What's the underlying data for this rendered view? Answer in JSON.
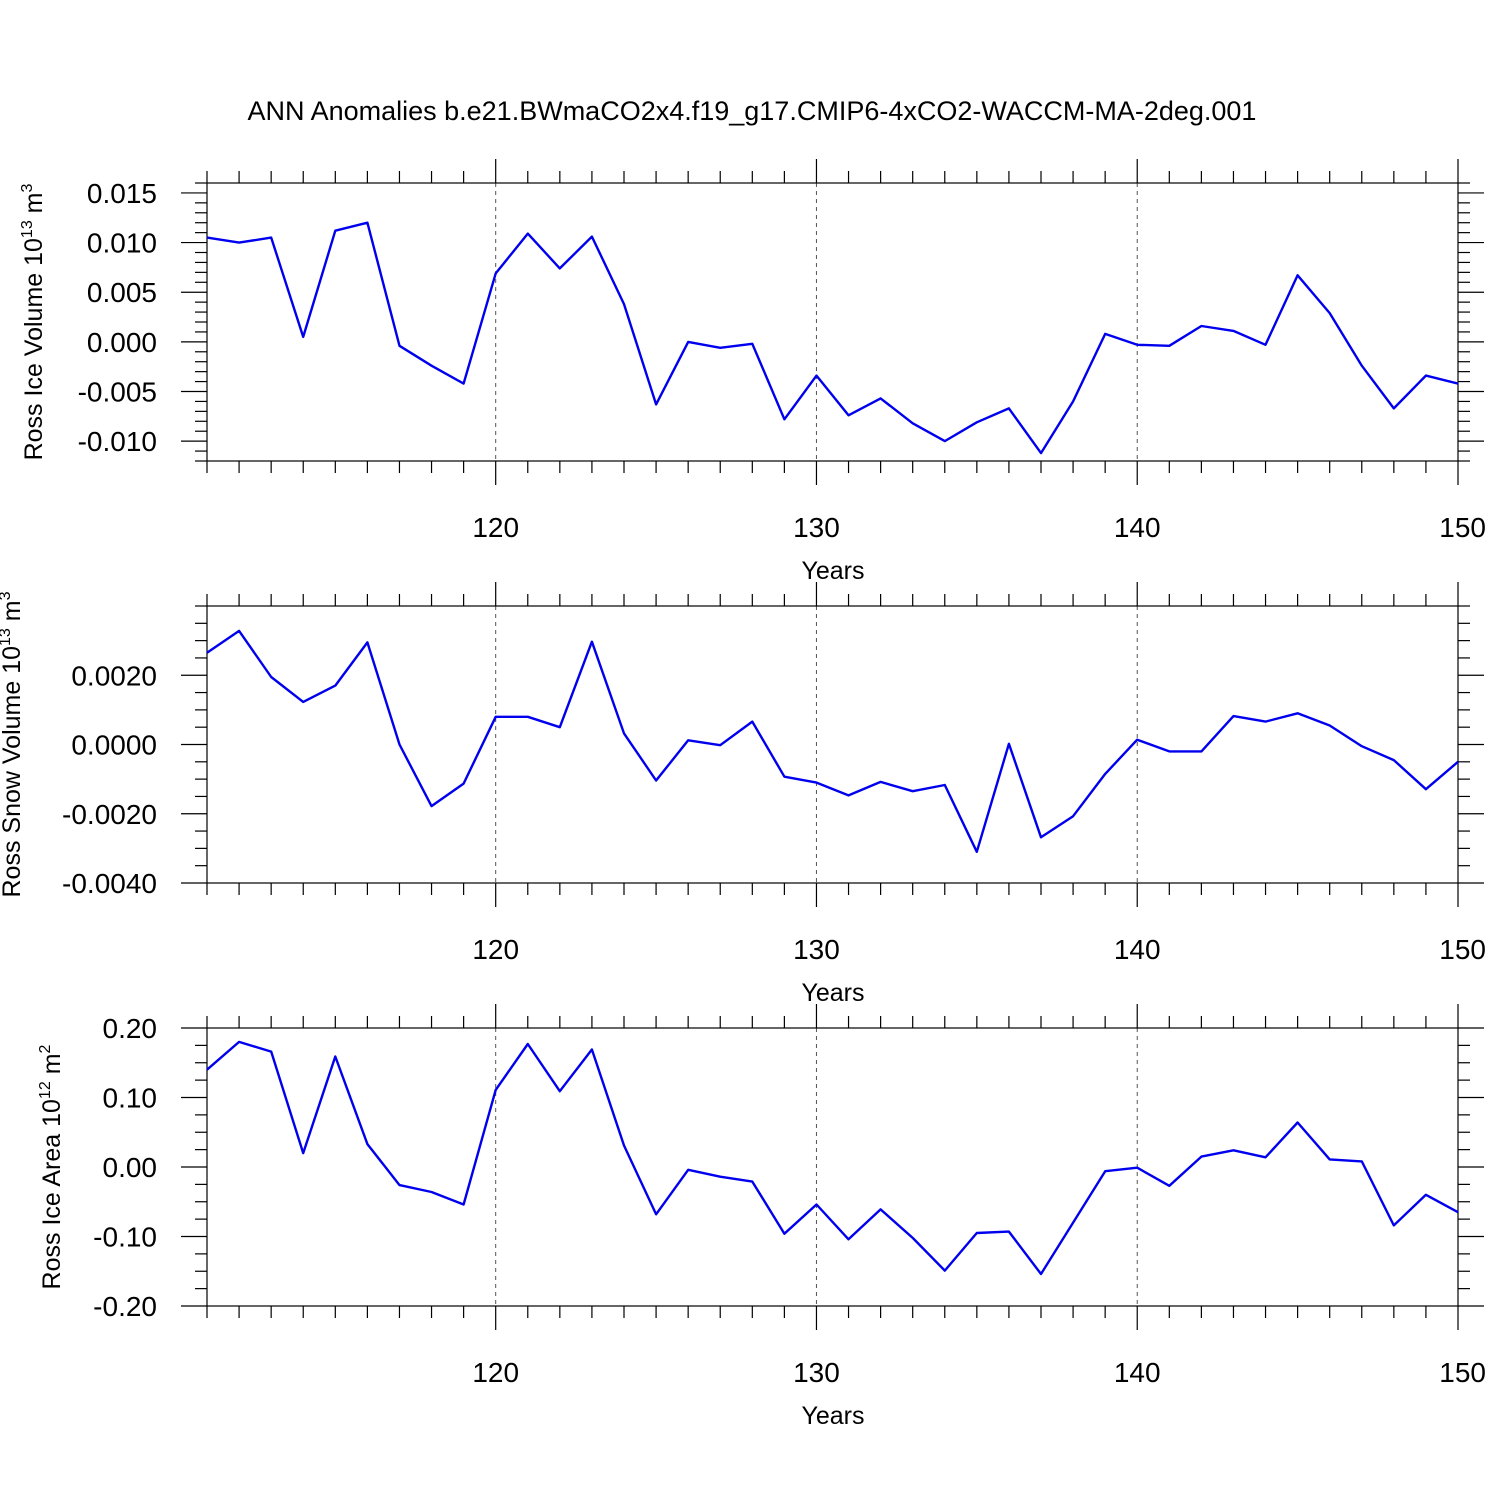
{
  "title": "ANN Anomalies b.e21.BWmaCO2x4.f19_g17.CMIP6-4xCO2-WACCM-MA-2deg.001",
  "chart_data": [
    {
      "type": "line",
      "ylabel_main": "Ross Ice Volume 10",
      "ylabel_exp": "13",
      "ylabel_unit": " m",
      "ylabel_unit_exp": "3",
      "xlabel": "Years",
      "xlim": [
        111,
        150
      ],
      "ylim": [
        -0.012,
        0.016
      ],
      "x_ticks": [
        120,
        130,
        140,
        150
      ],
      "x_tick_labels": [
        "120",
        "130",
        "140",
        "150"
      ],
      "y_ticks": [
        -0.01,
        -0.005,
        0.0,
        0.005,
        0.01,
        0.015
      ],
      "y_tick_labels": [
        "-0.010",
        "-0.005",
        "0.000",
        "0.005",
        "0.010",
        "0.015"
      ],
      "y_minor_step": 0.001,
      "grid_x": [
        120,
        130,
        140
      ],
      "x": [
        111,
        112,
        113,
        114,
        115,
        116,
        117,
        118,
        119,
        120,
        121,
        122,
        123,
        124,
        125,
        126,
        127,
        128,
        129,
        130,
        131,
        132,
        133,
        134,
        135,
        136,
        137,
        138,
        139,
        140,
        141,
        142,
        143,
        144,
        145,
        146,
        147,
        148,
        149,
        150
      ],
      "values": [
        0.0105,
        0.01,
        0.0105,
        0.0005,
        0.0112,
        0.012,
        -0.0004,
        -0.0024,
        -0.0042,
        0.0069,
        0.0109,
        0.0074,
        0.0106,
        0.0038,
        -0.0063,
        0.0,
        -0.0006,
        -0.0002,
        -0.0078,
        -0.0034,
        -0.0074,
        -0.0057,
        -0.0082,
        -0.01,
        -0.0081,
        -0.0067,
        -0.0112,
        -0.006,
        0.0008,
        -0.0003,
        -0.0004,
        0.0016,
        0.0011,
        -0.0003,
        0.0067,
        0.0029,
        -0.0024,
        -0.0067,
        -0.0034,
        -0.0042
      ],
      "color": "#0000ee"
    },
    {
      "type": "line",
      "ylabel_main": "Ross Snow Volume 10",
      "ylabel_exp": "13",
      "ylabel_unit": " m",
      "ylabel_unit_exp": "3",
      "xlabel": "Years",
      "xlim": [
        111,
        150
      ],
      "ylim": [
        -0.004,
        0.004
      ],
      "x_ticks": [
        120,
        130,
        140,
        150
      ],
      "x_tick_labels": [
        "120",
        "130",
        "140",
        "150"
      ],
      "y_ticks": [
        -0.004,
        -0.002,
        0.0,
        0.002
      ],
      "y_tick_labels": [
        "-0.0040",
        "-0.0020",
        "0.0000",
        "0.0020"
      ],
      "y_minor_step": 0.0005,
      "grid_x": [
        120,
        130,
        140
      ],
      "x": [
        111,
        112,
        113,
        114,
        115,
        116,
        117,
        118,
        119,
        120,
        121,
        122,
        123,
        124,
        125,
        126,
        127,
        128,
        129,
        130,
        131,
        132,
        133,
        134,
        135,
        136,
        137,
        138,
        139,
        140,
        141,
        142,
        143,
        144,
        145,
        146,
        147,
        148,
        149,
        150
      ],
      "values": [
        0.00265,
        0.00328,
        0.00195,
        0.00123,
        0.0017,
        0.00295,
        0.0,
        -0.00178,
        -0.00113,
        0.0008,
        0.0008,
        0.0005,
        0.00297,
        0.00032,
        -0.00104,
        0.00012,
        -2e-05,
        0.00066,
        -0.00093,
        -0.0011,
        -0.00147,
        -0.00108,
        -0.00135,
        -0.00117,
        -0.0031,
        2e-05,
        -0.00268,
        -0.00207,
        -0.00085,
        0.00014,
        -0.0002,
        -0.0002,
        0.00082,
        0.00066,
        0.0009,
        0.00055,
        -5e-05,
        -0.00045,
        -0.00129,
        -0.0005
      ],
      "color": "#0000ee"
    },
    {
      "type": "line",
      "ylabel_main": "Ross Ice Area 10",
      "ylabel_exp": "12",
      "ylabel_unit": " m",
      "ylabel_unit_exp": "2",
      "xlabel": "Years",
      "xlim": [
        111,
        150
      ],
      "ylim": [
        -0.2,
        0.2
      ],
      "x_ticks": [
        120,
        130,
        140,
        150
      ],
      "x_tick_labels": [
        "120",
        "130",
        "140",
        "150"
      ],
      "y_ticks": [
        -0.2,
        -0.1,
        0.0,
        0.1,
        0.2
      ],
      "y_tick_labels": [
        "-0.20",
        "-0.10",
        "0.00",
        "0.10",
        "0.20"
      ],
      "y_minor_step": 0.025,
      "grid_x": [
        120,
        130,
        140
      ],
      "x": [
        111,
        112,
        113,
        114,
        115,
        116,
        117,
        118,
        119,
        120,
        121,
        122,
        123,
        124,
        125,
        126,
        127,
        128,
        129,
        130,
        131,
        132,
        133,
        134,
        135,
        136,
        137,
        138,
        139,
        140,
        141,
        142,
        143,
        144,
        145,
        146,
        147,
        148,
        149,
        150
      ],
      "values": [
        0.14,
        0.18,
        0.166,
        0.02,
        0.159,
        0.033,
        -0.026,
        -0.036,
        -0.054,
        0.111,
        0.177,
        0.109,
        0.169,
        0.031,
        -0.068,
        -0.004,
        -0.014,
        -0.021,
        -0.096,
        -0.054,
        -0.104,
        -0.061,
        -0.102,
        -0.149,
        -0.095,
        -0.093,
        -0.154,
        -0.08,
        -0.006,
        -0.001,
        -0.027,
        0.015,
        0.024,
        0.014,
        0.064,
        0.011,
        0.008,
        -0.084,
        -0.04,
        -0.065
      ],
      "color": "#0000ee"
    }
  ]
}
